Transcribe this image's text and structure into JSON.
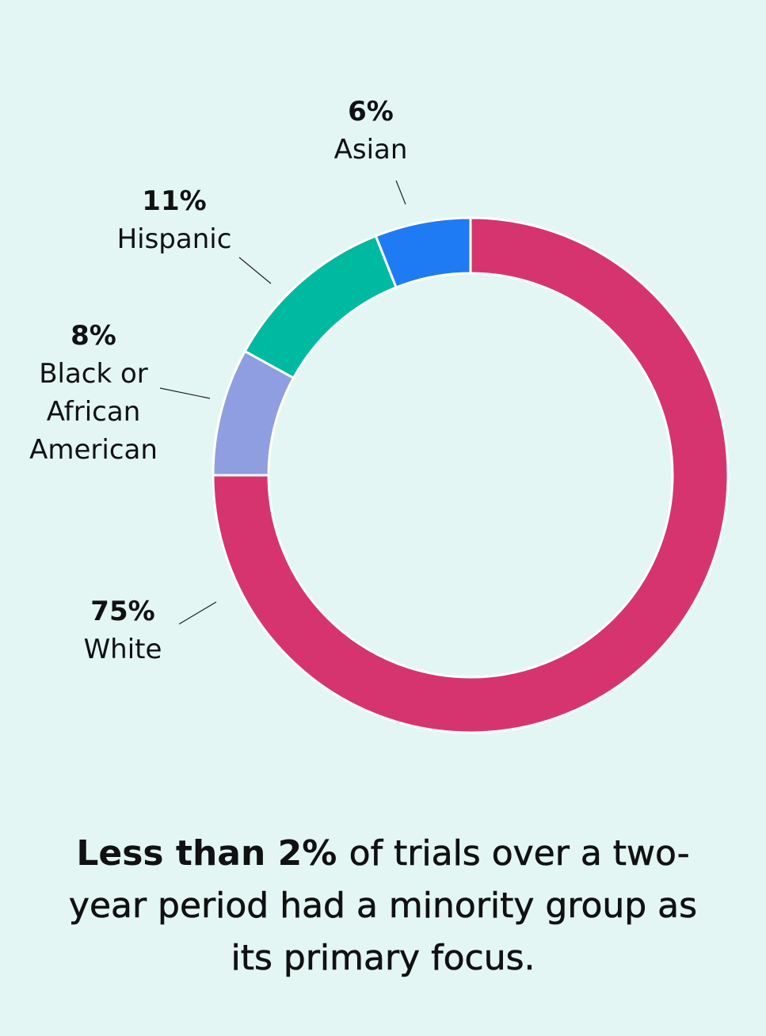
{
  "chart_data": {
    "type": "donut",
    "categories": [
      "White",
      "Black or African American",
      "Hispanic",
      "Asian"
    ],
    "values": [
      75,
      8,
      11,
      6
    ],
    "value_labels": [
      "75%",
      "8%",
      "11%",
      "6%"
    ],
    "colors": [
      "#d6346f",
      "#8f9ee0",
      "#00b9a1",
      "#1f7bf4"
    ],
    "caption_bold": "Less than 2%",
    "caption_rest": "of trials over a two-year period had a minority group as its primary focus."
  }
}
